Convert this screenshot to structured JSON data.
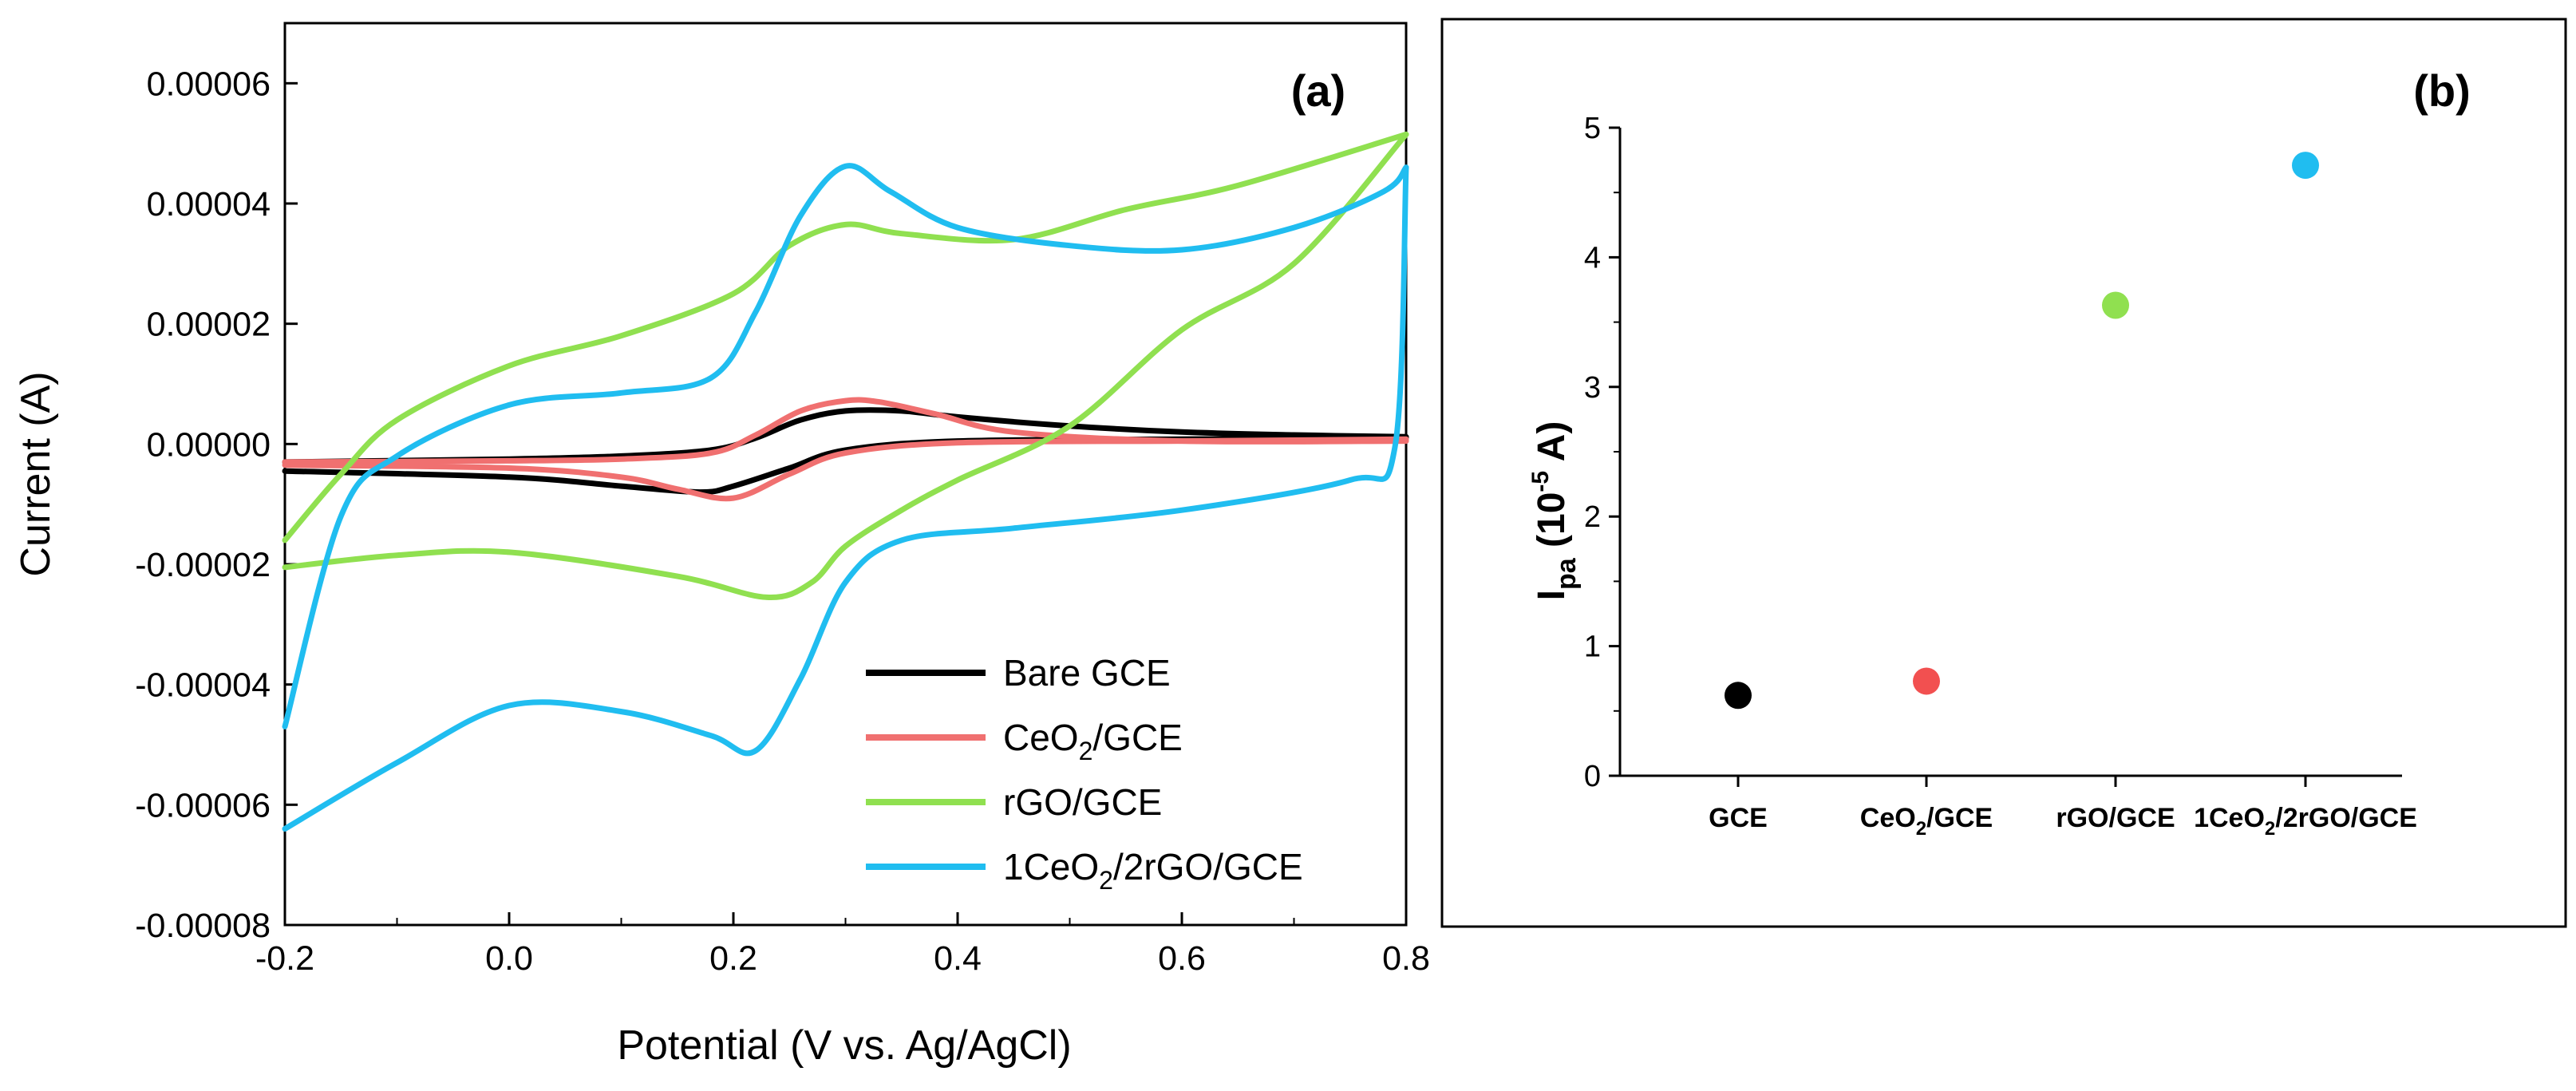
{
  "chart_data": [
    {
      "panel": "(a)",
      "type": "line",
      "xlabel": "Potential (V vs. Ag/AgCl)",
      "ylabel": "Current (A)",
      "xlim": [
        -0.2,
        0.8
      ],
      "ylim": [
        -8e-05,
        7e-05
      ],
      "x_ticks": [
        "-0.2",
        "0.0",
        "0.2",
        "0.4",
        "0.6",
        "0.8"
      ],
      "x_tick_values": [
        -0.2,
        0.0,
        0.2,
        0.4,
        0.6,
        0.8
      ],
      "y_ticks": [
        "-0.00008",
        "-0.00006",
        "-0.00004",
        "-0.00002",
        "0.00000",
        "0.00002",
        "0.00004",
        "0.00006"
      ],
      "y_tick_values": [
        -8e-05,
        -6e-05,
        -4e-05,
        -2e-05,
        0.0,
        2e-05,
        4e-05,
        6e-05
      ],
      "legend": {
        "placement": "bottom-right"
      },
      "series": [
        {
          "name": "Bare GCE",
          "color": "#000000",
          "forward": {
            "x": [
              -0.2,
              0.0,
              0.1,
              0.18,
              0.22,
              0.26,
              0.3,
              0.35,
              0.4,
              0.5,
              0.6,
              0.7,
              0.8
            ],
            "y": [
              -3e-06,
              -2.5e-06,
              -2e-06,
              -1e-06,
              1e-06,
              4e-06,
              5.5e-06,
              5.5e-06,
              4.5e-06,
              3e-06,
              2e-06,
              1.5e-06,
              1.2e-06
            ]
          },
          "reverse": {
            "x": [
              0.8,
              0.6,
              0.4,
              0.3,
              0.25,
              0.2,
              0.17,
              0.1,
              0.0,
              -0.2
            ],
            "y": [
              1e-06,
              8e-07,
              5e-07,
              -1e-06,
              -4e-06,
              -7e-06,
              -8e-06,
              -7e-06,
              -5.5e-06,
              -4.5e-06
            ]
          }
        },
        {
          "name": "CeO2/GCE",
          "color": "#f07070",
          "forward": {
            "x": [
              -0.2,
              0.0,
              0.1,
              0.18,
              0.22,
              0.26,
              0.3,
              0.33,
              0.38,
              0.45,
              0.6,
              0.8
            ],
            "y": [
              -3e-06,
              -2.8e-06,
              -2.5e-06,
              -1.5e-06,
              1.5e-06,
              5.5e-06,
              7.2e-06,
              7e-06,
              5e-06,
              2e-06,
              5e-07,
              5e-07
            ]
          },
          "reverse": {
            "x": [
              0.8,
              0.6,
              0.4,
              0.3,
              0.25,
              0.2,
              0.15,
              0.1,
              0.0,
              -0.2
            ],
            "y": [
              8e-07,
              5e-07,
              2e-07,
              -1.5e-06,
              -5e-06,
              -9e-06,
              -7.5e-06,
              -5.5e-06,
              -4e-06,
              -3.5e-06
            ]
          }
        },
        {
          "name": "rGO/GCE",
          "color": "#90e050",
          "forward": {
            "x": [
              -0.2,
              -0.15,
              -0.1,
              0.0,
              0.1,
              0.2,
              0.25,
              0.3,
              0.35,
              0.45,
              0.55,
              0.65,
              0.8
            ],
            "y": [
              -1.6e-05,
              -5e-06,
              4e-06,
              1.3e-05,
              1.8e-05,
              2.5e-05,
              3.3e-05,
              3.65e-05,
              3.5e-05,
              3.4e-05,
              3.9e-05,
              4.3e-05,
              5.15e-05
            ]
          },
          "reverse": {
            "x": [
              0.8,
              0.7,
              0.6,
              0.5,
              0.4,
              0.35,
              0.3,
              0.27,
              0.23,
              0.15,
              0.0,
              -0.1,
              -0.2
            ],
            "y": [
              5.15e-05,
              3e-05,
              1.9e-05,
              3e-06,
              -6e-06,
              -1.1e-05,
              -1.7e-05,
              -2.3e-05,
              -2.55e-05,
              -2.2e-05,
              -1.8e-05,
              -1.85e-05,
              -2.05e-05
            ]
          }
        },
        {
          "name": "1CeO2/2rGO/GCE",
          "color": "#20bdf0",
          "forward": {
            "x": [
              -0.2,
              -0.15,
              -0.1,
              0.0,
              0.1,
              0.18,
              0.22,
              0.26,
              0.3,
              0.34,
              0.4,
              0.5,
              0.6,
              0.7,
              0.78,
              0.8
            ],
            "y": [
              -4.7e-05,
              -1.2e-05,
              -2e-06,
              6.5e-06,
              8.5e-06,
              1.1e-05,
              2.2e-05,
              3.8e-05,
              4.62e-05,
              4.2e-05,
              3.6e-05,
              3.3e-05,
              3.23e-05,
              3.6e-05,
              4.2e-05,
              4.6e-05
            ]
          },
          "reverse": {
            "x": [
              0.8,
              0.79,
              0.75,
              0.6,
              0.45,
              0.35,
              0.3,
              0.26,
              0.22,
              0.18,
              0.1,
              0.0,
              -0.1,
              -0.2
            ],
            "y": [
              4.6e-05,
              -5e-07,
              -6e-06,
              -1.1e-05,
              -1.4e-05,
              -1.6e-05,
              -2.3e-05,
              -3.9e-05,
              -5.1e-05,
              -4.85e-05,
              -4.45e-05,
              -4.35e-05,
              -5.3e-05,
              -6.4e-05
            ]
          }
        }
      ]
    },
    {
      "panel": "(b)",
      "type": "scatter",
      "xlabel": "",
      "ylabel_main": "I",
      "ylabel_sub": "pa",
      "ylabel_rest": " (10",
      "ylabel_sup": "-5",
      "ylabel_end": " A)",
      "ylim": [
        0,
        5
      ],
      "y_ticks": [
        "0",
        "1",
        "2",
        "3",
        "4",
        "5"
      ],
      "y_tick_values": [
        0,
        1,
        2,
        3,
        4,
        5
      ],
      "categories": [
        "GCE",
        "CeO2/GCE",
        "rGO/GCE",
        "1CeO2/2rGO/GCE"
      ],
      "values": [
        0.62,
        0.73,
        3.63,
        4.71
      ],
      "colors": [
        "#000000",
        "#f25050",
        "#90e050",
        "#20bdf0"
      ]
    }
  ]
}
